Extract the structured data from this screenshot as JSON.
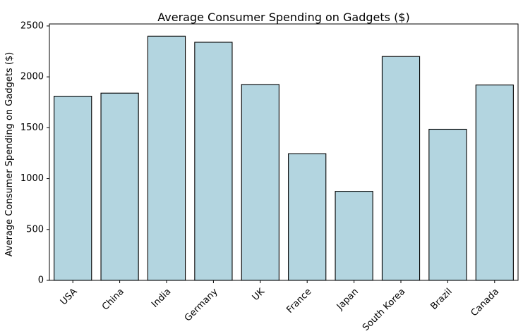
{
  "chart_data": {
    "type": "bar",
    "title": "Average Consumer Spending on Gadgets ($)",
    "xlabel": "",
    "ylabel": "Average Consumer Spending on Gadgets ($)",
    "categories": [
      "USA",
      "China",
      "India",
      "Germany",
      "UK",
      "France",
      "Japan",
      "South Korea",
      "Brazil",
      "Canada"
    ],
    "values": [
      1810,
      1840,
      2400,
      2340,
      1925,
      1245,
      875,
      2200,
      1485,
      1920
    ],
    "ylim": [
      0,
      2520
    ],
    "yticks": [
      0,
      500,
      1000,
      1500,
      2000,
      2500
    ],
    "bar_color": "#b3d5e0",
    "edge_color": "#000000",
    "grid": false,
    "legend": "none"
  }
}
